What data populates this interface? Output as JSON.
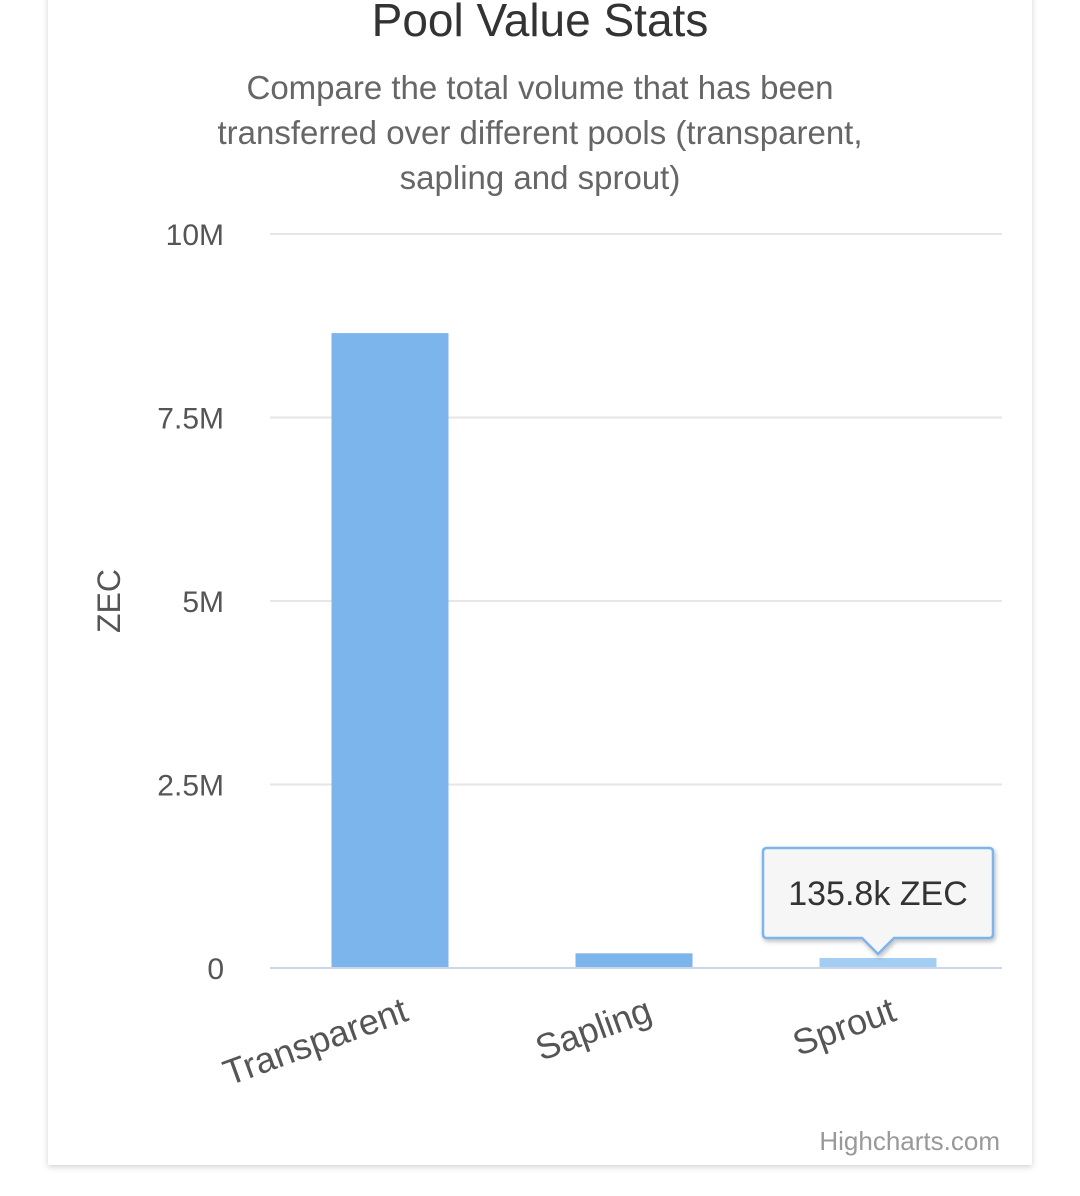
{
  "chart_data": {
    "type": "bar",
    "title": "Pool Value Stats",
    "subtitle_lines": [
      "Compare the total volume that has been",
      "transferred over different pools (transparent,",
      "sapling and sprout)"
    ],
    "ylabel": "ZEC",
    "xlabel": "",
    "categories": [
      "Transparent",
      "Sapling",
      "Sprout"
    ],
    "values": [
      8650000,
      200000,
      135800
    ],
    "ylim": [
      0,
      10000000
    ],
    "yticks": [
      0,
      2500000,
      5000000,
      7500000,
      10000000
    ],
    "ytick_labels": [
      "0",
      "2.5M",
      "5M",
      "7.5M",
      "10M"
    ],
    "grid": true,
    "legend": "none",
    "bar_color": "#7cb5ec",
    "hover_bar_color": "#a3cdf3",
    "highlighted_index": 2,
    "tooltip": {
      "text": "135.8k ZEC",
      "border_color": "#7cb5ec"
    },
    "credit": "Highcharts.com"
  }
}
